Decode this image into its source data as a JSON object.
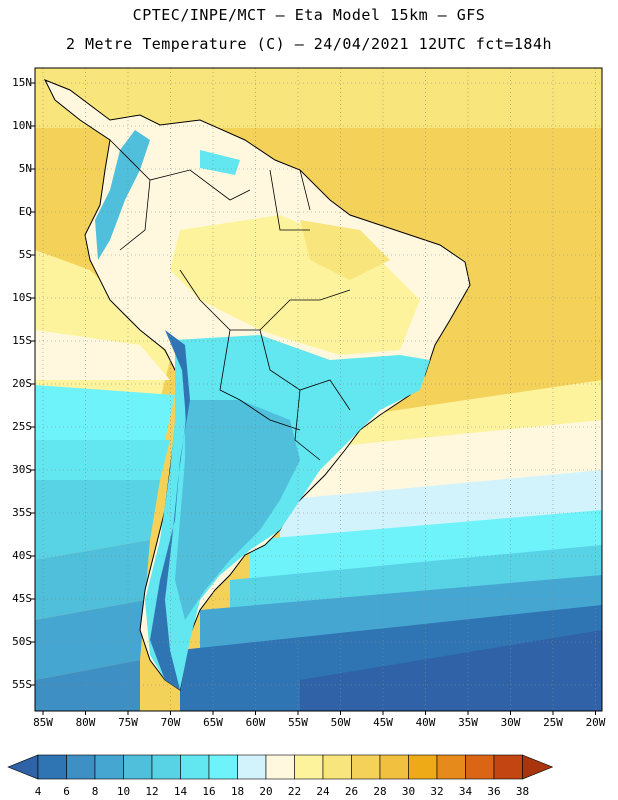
{
  "header": {
    "line1": "CPTEC/INPE/MCT –  Eta Model 15km – GFS",
    "line2": "2 Metre Temperature (C) – 24/04/2021 12UTC fct=184h"
  },
  "map": {
    "lat_labels": [
      "15N",
      "10N",
      "5N",
      "EQ",
      "5S",
      "10S",
      "15S",
      "20S",
      "25S",
      "30S",
      "35S",
      "40S",
      "45S",
      "50S",
      "55S"
    ],
    "lon_labels": [
      "85W",
      "80W",
      "75W",
      "70W",
      "65W",
      "60W",
      "55W",
      "50W",
      "45W",
      "40W",
      "35W",
      "30W",
      "25W",
      "20W"
    ]
  },
  "colorbar": {
    "labels": [
      "4",
      "6",
      "8",
      "10",
      "12",
      "14",
      "16",
      "18",
      "20",
      "22",
      "24",
      "26",
      "28",
      "30",
      "32",
      "34",
      "36",
      "38"
    ],
    "colors": [
      "#2f62a6",
      "#2f74b3",
      "#3d8fc4",
      "#45a6d2",
      "#4fbfdc",
      "#58d2e5",
      "#62e6ef",
      "#6ff3fb",
      "#d3f3fc",
      "#fff8df",
      "#fdf39c",
      "#f8e67c",
      "#f4d25a",
      "#f1c03e",
      "#efaa17",
      "#e78a1c",
      "#da6514",
      "#c34512",
      "#a8350e"
    ]
  }
}
